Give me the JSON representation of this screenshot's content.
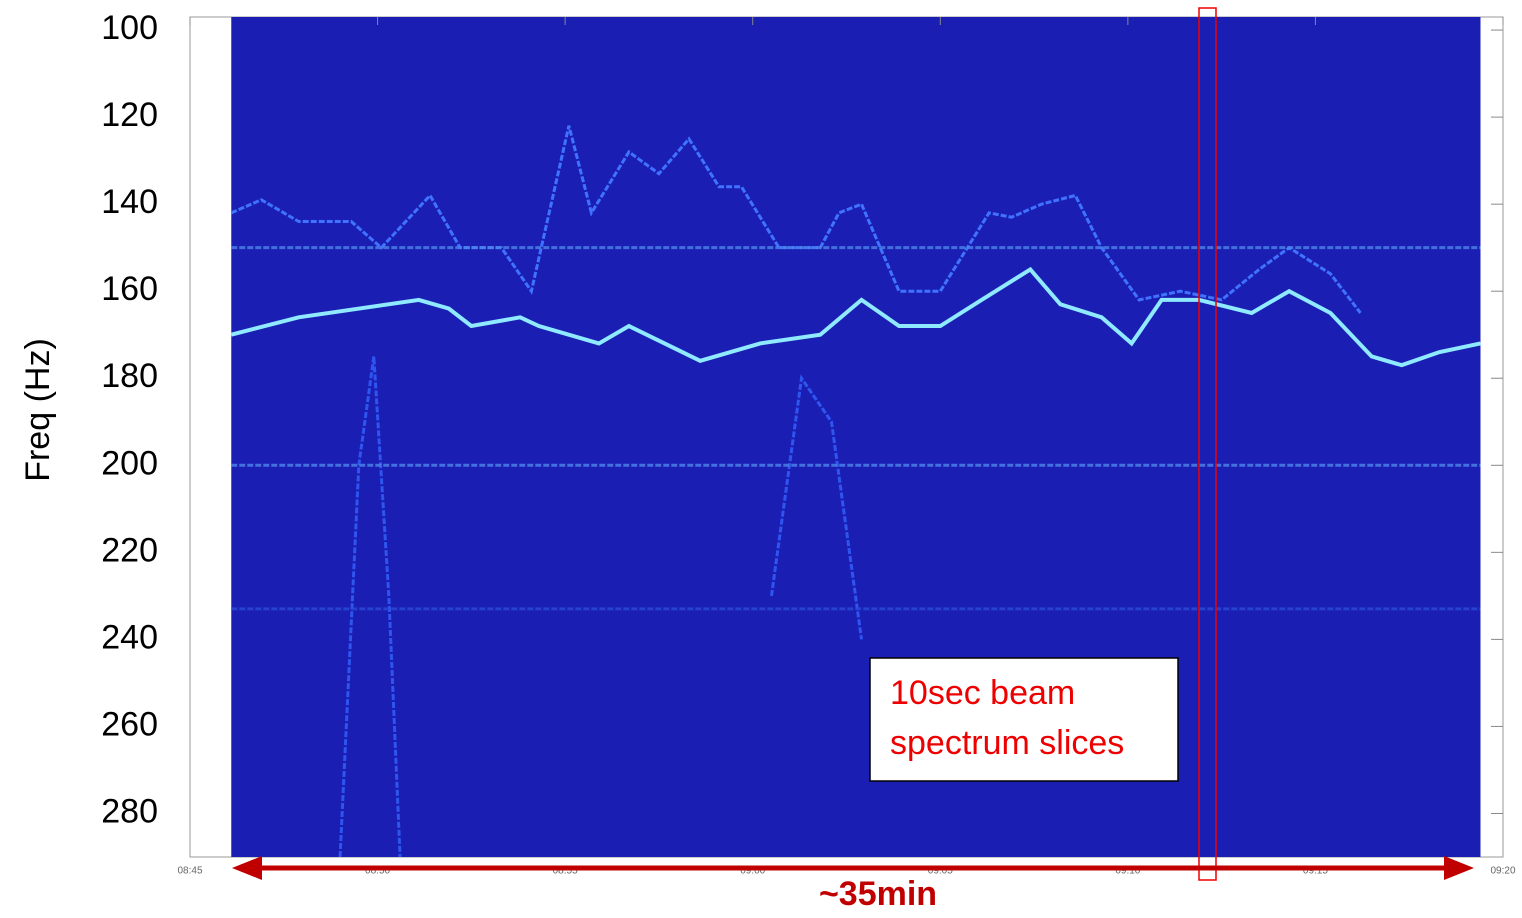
{
  "chart_data": {
    "type": "spectrogram",
    "ylabel": "Freq (Hz)",
    "ylim": [
      97,
      290
    ],
    "y_inverted": true,
    "yticks": [
      100,
      120,
      140,
      160,
      180,
      200,
      220,
      240,
      260,
      280
    ],
    "xlim": [
      0,
      35
    ],
    "xticks": [
      {
        "value": 0,
        "label": "08:45"
      },
      {
        "value": 5,
        "label": "08:50"
      },
      {
        "value": 10,
        "label": "08:55"
      },
      {
        "value": 15,
        "label": "09:00"
      },
      {
        "value": 20,
        "label": "09:05"
      },
      {
        "value": 25,
        "label": "09:10"
      },
      {
        "value": 30,
        "label": "09:15"
      },
      {
        "value": 35,
        "label": "09:20"
      }
    ],
    "background_color": "#1b1eb3",
    "traces": [
      {
        "color": "#8fe9ff",
        "x": [
          1.1,
          2.9,
          6.1,
          6.9,
          7.5,
          8.8,
          9.3,
          10.9,
          11.7,
          13.6,
          15.2,
          16.8,
          17.9,
          18.9,
          20.0,
          21.1,
          22.4,
          23.2,
          24.3,
          25.1,
          25.9,
          26.9,
          28.3,
          29.3,
          30.4,
          31.5,
          32.3,
          33.3,
          34.4
        ],
        "values": [
          170,
          166,
          162,
          164,
          168,
          166,
          168,
          172,
          168,
          176,
          172,
          170,
          162,
          168,
          168,
          162,
          155,
          163,
          166,
          172,
          162,
          162,
          165,
          160,
          165,
          175,
          177,
          174,
          172
        ]
      },
      {
        "color": "#3f73ff",
        "x": [
          1.1,
          1.9,
          2.9,
          4.3,
          5.1,
          6.4,
          7.2,
          8.3,
          9.1,
          10.1,
          10.7,
          11.7,
          12.5,
          13.3,
          14.1,
          14.7,
          15.7,
          16.8,
          17.3,
          17.9,
          18.9,
          20.0,
          21.3,
          21.9,
          22.7,
          23.6,
          24.3,
          25.3,
          26.4,
          27.5,
          28.5,
          29.3,
          30.4,
          31.2
        ],
        "values": [
          142,
          139,
          144,
          144,
          150,
          138,
          150,
          150,
          160,
          122,
          142,
          128,
          133,
          125,
          136,
          136,
          150,
          150,
          142,
          140,
          160,
          160,
          142,
          143,
          140,
          138,
          150,
          162,
          160,
          162,
          155,
          150,
          156,
          165
        ]
      },
      {
        "color": "#2f55f0",
        "x": [
          4.0,
          4.5,
          4.9,
          5.3,
          5.6
        ],
        "values": [
          290,
          200,
          175,
          230,
          290
        ]
      },
      {
        "color": "#2f55f0",
        "x": [
          15.5,
          16.3,
          17.1,
          17.9
        ],
        "values": [
          230,
          180,
          190,
          240
        ]
      },
      {
        "color": "#4c86e8",
        "x": [
          1.1,
          34.4
        ],
        "values": [
          150,
          150
        ]
      },
      {
        "color": "#4c86e8",
        "x": [
          1.1,
          34.4
        ],
        "values": [
          200,
          200
        ]
      },
      {
        "color": "#2a4ad8",
        "x": [
          1.1,
          34.4
        ],
        "values": [
          233,
          233
        ]
      }
    ],
    "annotations": {
      "span": "~35min",
      "box": "10sec beam spectrum slices"
    }
  }
}
